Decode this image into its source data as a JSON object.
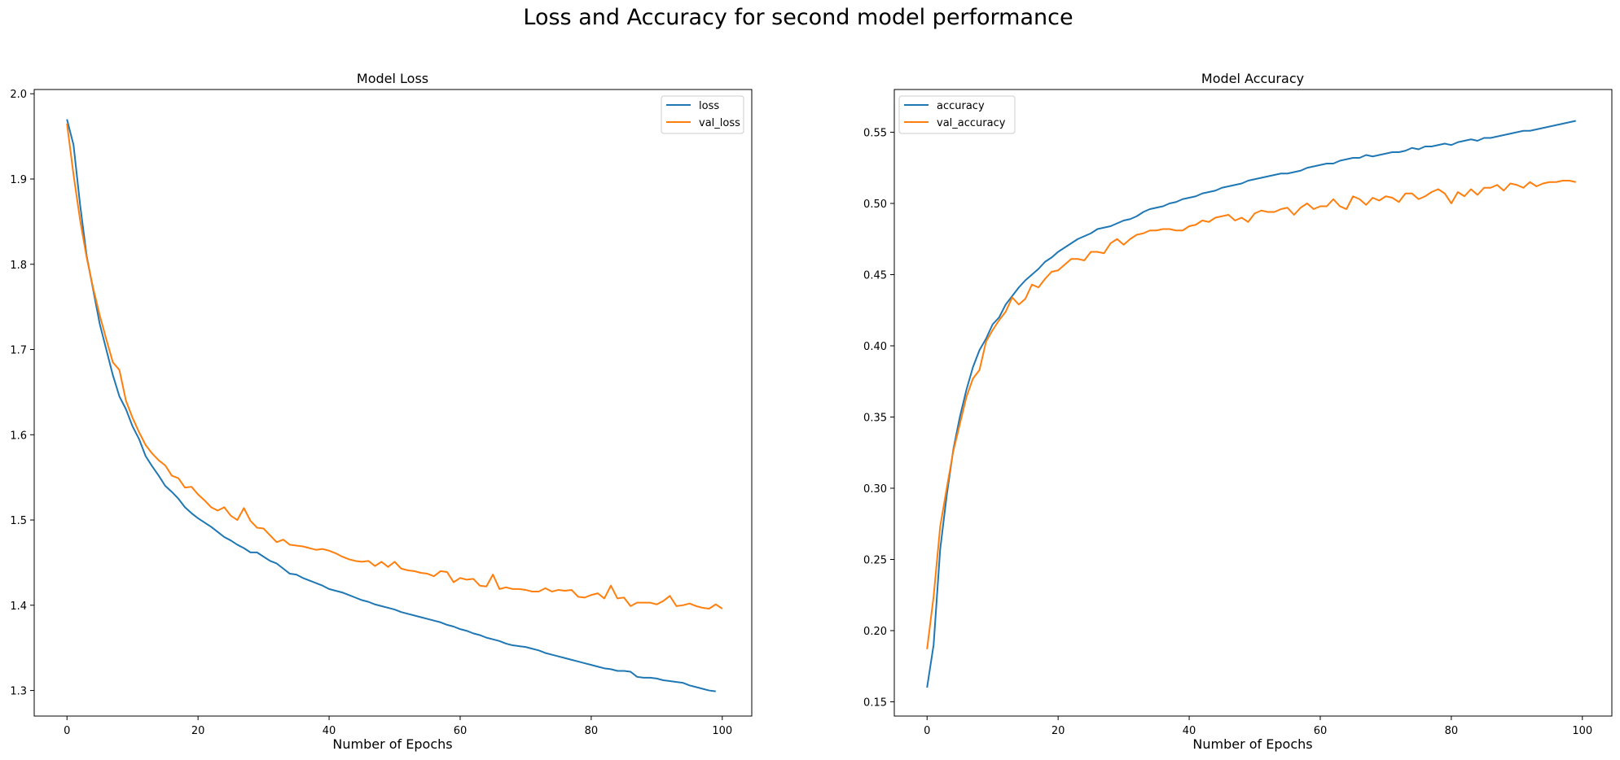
{
  "figure": {
    "suptitle": "Loss and Accuracy for second model performance"
  },
  "colors": {
    "series1": "#1f77b4",
    "series2": "#ff7f0e"
  },
  "chart_data": [
    {
      "type": "line",
      "title": "Model Loss",
      "xlabel": "Number of Epochs",
      "ylabel": "",
      "xlim": [
        -5,
        104.5
      ],
      "ylim": [
        1.27,
        2.005
      ],
      "xticks": [
        0,
        20,
        40,
        60,
        80,
        100
      ],
      "xtick_labels": [
        "0",
        "20",
        "40",
        "60",
        "80",
        "100"
      ],
      "yticks": [
        1.3,
        1.4,
        1.5,
        1.6,
        1.7,
        1.8,
        1.9,
        2.0
      ],
      "ytick_labels": [
        "1.3",
        "1.4",
        "1.5",
        "1.6",
        "1.7",
        "1.8",
        "1.9",
        "2.0"
      ],
      "grid": false,
      "legend": "upper-right",
      "series": [
        {
          "name": "loss",
          "color": "#1f77b4",
          "values": [
            1.97,
            1.94,
            1.87,
            1.81,
            1.77,
            1.73,
            1.7,
            1.67,
            1.645,
            1.63,
            1.61,
            1.595,
            1.575,
            1.563,
            1.552,
            1.54,
            1.533,
            1.525,
            1.515,
            1.508,
            1.502,
            1.497,
            1.492,
            1.486,
            1.48,
            1.476,
            1.471,
            1.467,
            1.462,
            1.462,
            1.457,
            1.452,
            1.449,
            1.443,
            1.437,
            1.436,
            1.432,
            1.429,
            1.426,
            1.423,
            1.419,
            1.417,
            1.415,
            1.412,
            1.409,
            1.406,
            1.404,
            1.401,
            1.399,
            1.397,
            1.395,
            1.392,
            1.39,
            1.388,
            1.386,
            1.384,
            1.382,
            1.38,
            1.377,
            1.375,
            1.372,
            1.37,
            1.367,
            1.365,
            1.362,
            1.36,
            1.358,
            1.355,
            1.353,
            1.352,
            1.351,
            1.349,
            1.347,
            1.344,
            1.342,
            1.34,
            1.338,
            1.336,
            1.334,
            1.332,
            1.33,
            1.328,
            1.326,
            1.325,
            1.323,
            1.323,
            1.322,
            1.316,
            1.315,
            1.315,
            1.314,
            1.312,
            1.311,
            1.31,
            1.309,
            1.306,
            1.304,
            1.302,
            1.3,
            1.299
          ]
        },
        {
          "name": "val_loss",
          "color": "#ff7f0e",
          "values": [
            1.965,
            1.905,
            1.852,
            1.808,
            1.772,
            1.74,
            1.712,
            1.685,
            1.676,
            1.64,
            1.62,
            1.603,
            1.588,
            1.578,
            1.57,
            1.564,
            1.552,
            1.549,
            1.538,
            1.539,
            1.53,
            1.523,
            1.515,
            1.511,
            1.515,
            1.505,
            1.5,
            1.514,
            1.499,
            1.491,
            1.49,
            1.482,
            1.474,
            1.477,
            1.471,
            1.47,
            1.469,
            1.467,
            1.465,
            1.466,
            1.464,
            1.461,
            1.457,
            1.454,
            1.452,
            1.451,
            1.452,
            1.446,
            1.451,
            1.445,
            1.451,
            1.443,
            1.441,
            1.44,
            1.438,
            1.437,
            1.434,
            1.44,
            1.439,
            1.427,
            1.432,
            1.43,
            1.431,
            1.423,
            1.422,
            1.436,
            1.419,
            1.421,
            1.419,
            1.419,
            1.418,
            1.416,
            1.416,
            1.42,
            1.416,
            1.418,
            1.417,
            1.418,
            1.41,
            1.409,
            1.412,
            1.414,
            1.408,
            1.423,
            1.408,
            1.409,
            1.399,
            1.403,
            1.403,
            1.403,
            1.401,
            1.405,
            1.411,
            1.399,
            1.4,
            1.402,
            1.399,
            1.397,
            1.396,
            1.401,
            1.396
          ]
        }
      ]
    },
    {
      "type": "line",
      "title": "Model Accuracy",
      "xlabel": "Number of Epochs",
      "ylabel": "",
      "xlim": [
        -5,
        104.5
      ],
      "ylim": [
        0.14,
        0.58
      ],
      "xticks": [
        0,
        20,
        40,
        60,
        80,
        100
      ],
      "xtick_labels": [
        "0",
        "20",
        "40",
        "60",
        "80",
        "100"
      ],
      "yticks": [
        0.15,
        0.2,
        0.25,
        0.3,
        0.35,
        0.4,
        0.45,
        0.5,
        0.55
      ],
      "ytick_labels": [
        "0.15",
        "0.20",
        "0.25",
        "0.30",
        "0.35",
        "0.40",
        "0.45",
        "0.50",
        "0.55"
      ],
      "grid": false,
      "legend": "upper-left",
      "series": [
        {
          "name": "accuracy",
          "color": "#1f77b4",
          "values": [
            0.16,
            0.19,
            0.257,
            0.295,
            0.327,
            0.35,
            0.369,
            0.385,
            0.397,
            0.405,
            0.415,
            0.42,
            0.429,
            0.435,
            0.441,
            0.446,
            0.45,
            0.454,
            0.459,
            0.462,
            0.466,
            0.469,
            0.472,
            0.475,
            0.477,
            0.479,
            0.482,
            0.483,
            0.484,
            0.486,
            0.488,
            0.489,
            0.491,
            0.494,
            0.496,
            0.497,
            0.498,
            0.5,
            0.501,
            0.503,
            0.504,
            0.505,
            0.507,
            0.508,
            0.509,
            0.511,
            0.512,
            0.513,
            0.514,
            0.516,
            0.517,
            0.518,
            0.519,
            0.52,
            0.521,
            0.521,
            0.522,
            0.523,
            0.525,
            0.526,
            0.527,
            0.528,
            0.528,
            0.53,
            0.531,
            0.532,
            0.532,
            0.534,
            0.533,
            0.534,
            0.535,
            0.536,
            0.536,
            0.537,
            0.539,
            0.538,
            0.54,
            0.54,
            0.541,
            0.542,
            0.541,
            0.543,
            0.544,
            0.545,
            0.544,
            0.546,
            0.546,
            0.547,
            0.548,
            0.549,
            0.55,
            0.551,
            0.551,
            0.552,
            0.553,
            0.554,
            0.555,
            0.556,
            0.557,
            0.558
          ]
        },
        {
          "name": "val_accuracy",
          "color": "#ff7f0e",
          "values": [
            0.187,
            0.224,
            0.273,
            0.3,
            0.326,
            0.345,
            0.364,
            0.377,
            0.383,
            0.403,
            0.411,
            0.418,
            0.424,
            0.434,
            0.429,
            0.433,
            0.443,
            0.441,
            0.447,
            0.452,
            0.453,
            0.457,
            0.461,
            0.461,
            0.46,
            0.466,
            0.466,
            0.465,
            0.472,
            0.475,
            0.471,
            0.475,
            0.478,
            0.479,
            0.481,
            0.481,
            0.482,
            0.482,
            0.481,
            0.481,
            0.484,
            0.485,
            0.488,
            0.487,
            0.49,
            0.491,
            0.492,
            0.488,
            0.49,
            0.487,
            0.493,
            0.495,
            0.494,
            0.494,
            0.496,
            0.497,
            0.492,
            0.497,
            0.5,
            0.496,
            0.498,
            0.498,
            0.503,
            0.498,
            0.496,
            0.505,
            0.503,
            0.499,
            0.504,
            0.502,
            0.505,
            0.504,
            0.501,
            0.507,
            0.507,
            0.503,
            0.505,
            0.508,
            0.51,
            0.507,
            0.5,
            0.508,
            0.505,
            0.51,
            0.506,
            0.511,
            0.511,
            0.513,
            0.509,
            0.514,
            0.513,
            0.511,
            0.515,
            0.512,
            0.514,
            0.515,
            0.515,
            0.516,
            0.516,
            0.515
          ]
        }
      ]
    }
  ]
}
